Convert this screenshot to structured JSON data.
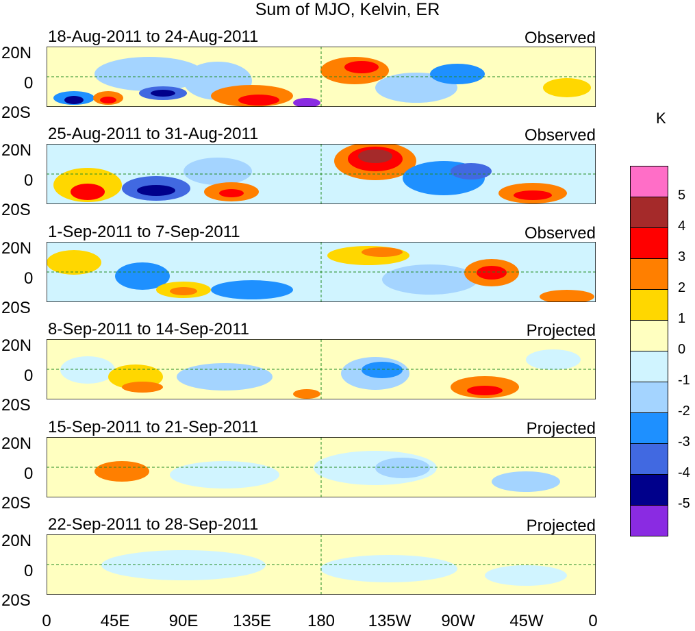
{
  "title": "Sum of MJO, Kelvin, ER",
  "units": "K",
  "lat_labels": [
    "20N",
    "0",
    "20S"
  ],
  "lon_labels": [
    "0",
    "45E",
    "90E",
    "135E",
    "180",
    "135W",
    "90W",
    "45W",
    "0"
  ],
  "panels": [
    {
      "date": "18-Aug-2011 to 24-Aug-2011",
      "status": "Observed"
    },
    {
      "date": "25-Aug-2011 to 31-Aug-2011",
      "status": "Observed"
    },
    {
      "date": "1-Sep-2011 to 7-Sep-2011",
      "status": "Observed"
    },
    {
      "date": "8-Sep-2011 to 14-Sep-2011",
      "status": "Projected"
    },
    {
      "date": "15-Sep-2011 to 21-Sep-2011",
      "status": "Projected"
    },
    {
      "date": "22-Sep-2011 to 28-Sep-2011",
      "status": "Projected"
    }
  ],
  "colorbar": {
    "colors": [
      "#ff6ec7",
      "#a52a2a",
      "#ff0000",
      "#ff7f00",
      "#ffd700",
      "#ffffc0",
      "#d0f4ff",
      "#a4d4ff",
      "#1e90ff",
      "#4169e1",
      "#00008b",
      "#8a2be2"
    ],
    "labels": [
      "5",
      "4",
      "3",
      "2",
      "1",
      "0",
      "-1",
      "-2",
      "-3",
      "-4",
      "-5"
    ]
  }
}
